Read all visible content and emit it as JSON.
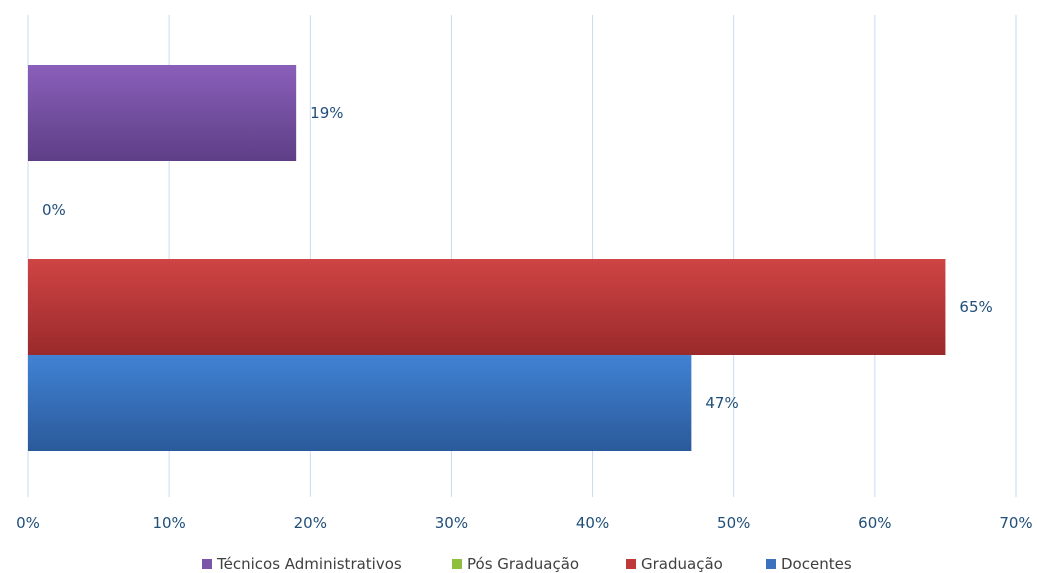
{
  "chart_data": {
    "type": "bar",
    "orientation": "horizontal",
    "xlim": [
      0,
      70
    ],
    "x_ticks": [
      "0%",
      "10%",
      "20%",
      "30%",
      "40%",
      "50%",
      "60%",
      "70%"
    ],
    "grid": true,
    "legend_position": "bottom",
    "series": [
      {
        "name": "Técnicos Administrativos",
        "value": 19,
        "label": "19%",
        "color": "#7b55a8"
      },
      {
        "name": "Pós Graduação",
        "value": 0,
        "label": "0%",
        "color": "#8fbf3f"
      },
      {
        "name": "Graduação",
        "value": 65,
        "label": "65%",
        "color": "#c0393a"
      },
      {
        "name": "Docentes",
        "value": 47,
        "label": "47%",
        "color": "#3b72c0"
      }
    ]
  }
}
